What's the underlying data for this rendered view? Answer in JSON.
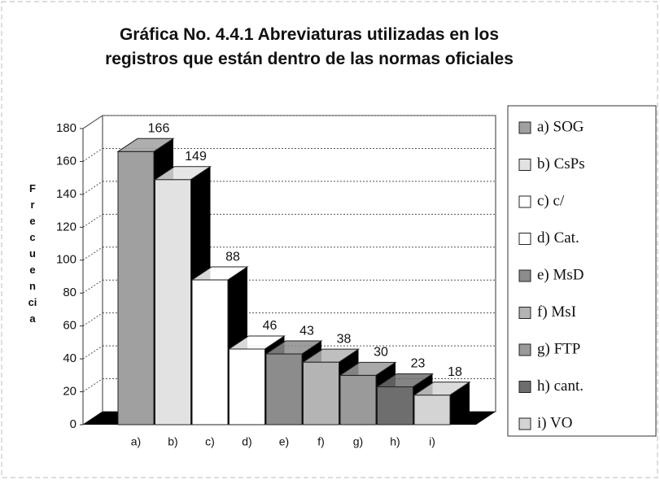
{
  "chart_data": {
    "type": "bar3d",
    "title": "Gráfica No. 4.4.1 Abreviaturas utilizadas en los registros que están dentro de las normas oficiales",
    "y_label": "Frecuencia",
    "categories": [
      "a)",
      "b)",
      "c)",
      "d)",
      "e)",
      "f)",
      "g)",
      "h)",
      "i)"
    ],
    "values": [
      166,
      149,
      88,
      46,
      43,
      38,
      30,
      23,
      18
    ],
    "legend": [
      "a) SOG",
      "b) CsPs",
      "c) c/",
      "d) Cat.",
      "e) MsD",
      "f)  MsI",
      "g) FTP",
      "h) cant.",
      "i)  VO"
    ],
    "colors": [
      "#a0a0a0",
      "#e2e2e2",
      "#ffffff",
      "#ffffff",
      "#8c8c8c",
      "#b4b4b4",
      "#9a9a9a",
      "#6e6e6e",
      "#d4d4d4"
    ],
    "ylim": [
      0,
      180
    ],
    "yticks": [
      0,
      20,
      40,
      60,
      80,
      100,
      120,
      140,
      160,
      180
    ],
    "grid": true
  }
}
